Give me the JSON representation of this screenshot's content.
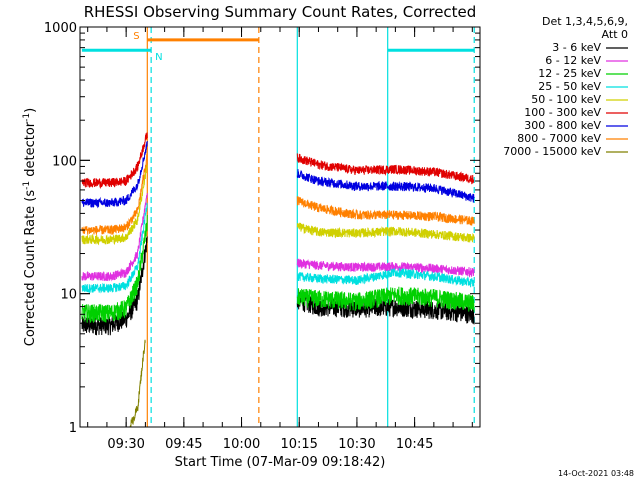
{
  "chart_data": {
    "type": "line",
    "title": "RHESSI Observing Summary Count Rates, Corrected",
    "xlabel": "Start Time (07-Mar-09 09:18:42)",
    "ylabel_main": "Corrected Count Rate (s",
    "ylabel_sup1": "-1",
    "ylabel_mid": " detector",
    "ylabel_sup2": "-1",
    "ylabel_end": ")",
    "y_scale": "log",
    "ylim": [
      1,
      1000
    ],
    "xlim_minutes": [
      558,
      662
    ],
    "x_ticks": [
      {
        "minute": 570,
        "label": "09:30"
      },
      {
        "minute": 585,
        "label": "09:45"
      },
      {
        "minute": 600,
        "label": "10:00"
      },
      {
        "minute": 615,
        "label": "10:15"
      },
      {
        "minute": 630,
        "label": "10:30"
      },
      {
        "minute": 645,
        "label": "10:45"
      }
    ],
    "y_ticks": [
      {
        "value": 1,
        "label": "1"
      },
      {
        "value": 10,
        "label": "10"
      },
      {
        "value": 100,
        "label": "100"
      },
      {
        "value": 1000,
        "label": "1000"
      }
    ],
    "legend_header": [
      "Det 1,3,4,5,6,9,",
      "Att 0"
    ],
    "legend_placement": "right",
    "timestamp": "14-Oct-2021 03:48",
    "segments": [
      [
        558.5,
        575.5
      ],
      [
        614.5,
        660.5
      ]
    ],
    "series": [
      {
        "name": "3 - 6 keV",
        "color": "#000000",
        "p1": [
          [
            558.5,
            5.8
          ],
          [
            566,
            5.8
          ],
          [
            570,
            6.5
          ],
          [
            573,
            9
          ],
          [
            575.5,
            26
          ]
        ],
        "p2": [
          [
            614.5,
            9
          ],
          [
            620,
            8
          ],
          [
            630,
            7.8
          ],
          [
            640,
            8
          ],
          [
            650,
            7.6
          ],
          [
            660.5,
            7
          ]
        ]
      },
      {
        "name": "6 - 12 keV",
        "color": "#e030e0",
        "p1": [
          [
            558.5,
            13.5
          ],
          [
            566,
            13.5
          ],
          [
            570,
            14.5
          ],
          [
            573,
            20
          ],
          [
            575.5,
            58
          ]
        ],
        "p2": [
          [
            614.5,
            17
          ],
          [
            620,
            16.3
          ],
          [
            630,
            15.8
          ],
          [
            640,
            16
          ],
          [
            650,
            15.5
          ],
          [
            660.5,
            14.5
          ]
        ]
      },
      {
        "name": "12 - 25 keV",
        "color": "#00d000",
        "p1": [
          [
            558.5,
            7.2
          ],
          [
            566,
            7.2
          ],
          [
            570,
            7.8
          ],
          [
            573,
            12
          ],
          [
            575.5,
            34
          ]
        ],
        "p2": [
          [
            614.5,
            9.5
          ],
          [
            620,
            9.2
          ],
          [
            630,
            8.8
          ],
          [
            640,
            9.8
          ],
          [
            650,
            9.4
          ],
          [
            660.5,
            8.5
          ]
        ]
      },
      {
        "name": "25 - 50 keV",
        "color": "#00e0e0",
        "p1": [
          [
            558.5,
            11
          ],
          [
            566,
            11
          ],
          [
            570,
            11.5
          ],
          [
            573,
            16
          ],
          [
            575.5,
            48
          ]
        ],
        "p2": [
          [
            614.5,
            13.5
          ],
          [
            620,
            13
          ],
          [
            630,
            12.6
          ],
          [
            640,
            14.5
          ],
          [
            650,
            13.5
          ],
          [
            660.5,
            12
          ]
        ]
      },
      {
        "name": "50 - 100 keV",
        "color": "#d0d000",
        "p1": [
          [
            558.5,
            25.5
          ],
          [
            566,
            25.5
          ],
          [
            570,
            26.5
          ],
          [
            573,
            36
          ],
          [
            575.5,
            95
          ]
        ],
        "p2": [
          [
            614.5,
            32
          ],
          [
            620,
            29
          ],
          [
            630,
            28.5
          ],
          [
            640,
            29.5
          ],
          [
            650,
            28
          ],
          [
            660.5,
            26
          ]
        ]
      },
      {
        "name": "100 - 300 keV",
        "color": "#e00000",
        "p1": [
          [
            558.5,
            68
          ],
          [
            566,
            68
          ],
          [
            570,
            70
          ],
          [
            573,
            90
          ],
          [
            575.5,
            160
          ]
        ],
        "p2": [
          [
            614.5,
            105
          ],
          [
            620,
            93
          ],
          [
            630,
            84
          ],
          [
            640,
            86
          ],
          [
            650,
            82
          ],
          [
            660.5,
            72
          ]
        ]
      },
      {
        "name": "300 - 800 keV",
        "color": "#0000e0",
        "p1": [
          [
            558.5,
            48
          ],
          [
            566,
            48
          ],
          [
            570,
            50
          ],
          [
            573,
            66
          ],
          [
            575.5,
            135
          ]
        ],
        "p2": [
          [
            614.5,
            80
          ],
          [
            620,
            70
          ],
          [
            630,
            64
          ],
          [
            640,
            64
          ],
          [
            650,
            62
          ],
          [
            660.5,
            52
          ]
        ]
      },
      {
        "name": "800 - 7000 keV",
        "color": "#ff8000",
        "p1": [
          [
            558.5,
            30
          ],
          [
            566,
            30
          ],
          [
            570,
            31.5
          ],
          [
            573,
            42
          ],
          [
            575.5,
            110
          ]
        ],
        "p2": [
          [
            614.5,
            50
          ],
          [
            620,
            44
          ],
          [
            630,
            39
          ],
          [
            640,
            39
          ],
          [
            650,
            38
          ],
          [
            660.5,
            35
          ]
        ]
      },
      {
        "name": "7000 - 15000 keV",
        "color": "#808000",
        "p1": [
          [
            571,
            1.0
          ],
          [
            573,
            1.4
          ],
          [
            574.5,
            3.5
          ],
          [
            575,
            4.6
          ]
        ],
        "p2": []
      }
    ],
    "flags": [
      {
        "label": "S",
        "color": "#ff8000",
        "x_start": 575.5,
        "x_end": 604.5,
        "value": 800
      },
      {
        "label": "N",
        "color": "#00e0e0",
        "x_start": 558.5,
        "x_end": 576.5,
        "value": 670
      },
      {
        "label": "",
        "color": "#00e0e0",
        "x_start": 638,
        "x_end": 660.5,
        "value": 670
      }
    ],
    "vlines": [
      {
        "minute": 576.5,
        "color": "#00e0e0",
        "dashed": true
      },
      {
        "minute": 575.5,
        "color": "#ff8000",
        "dashed": false
      },
      {
        "minute": 604.5,
        "color": "#ff8000",
        "dashed": true
      },
      {
        "minute": 614.5,
        "color": "#00e0e0",
        "dashed": false
      },
      {
        "minute": 638,
        "color": "#00e0e0",
        "dashed": false
      },
      {
        "minute": 660.5,
        "color": "#00e0e0",
        "dashed": true
      }
    ]
  }
}
